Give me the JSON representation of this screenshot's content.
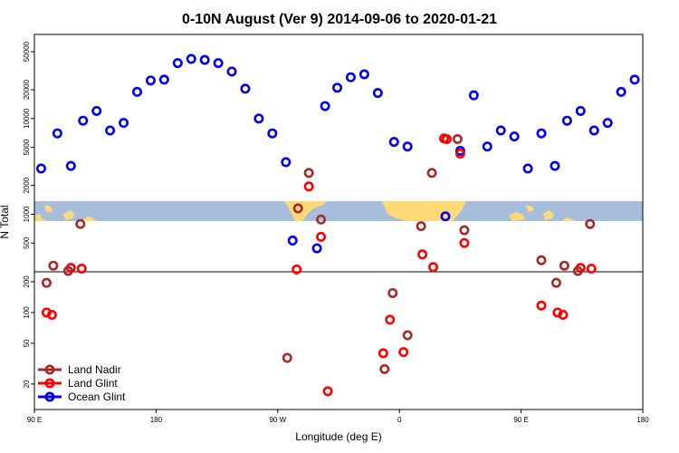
{
  "chart_data": {
    "type": "scatter",
    "title": "0-10N August (Ver 9)   2014-09-06 to 2020-01-21",
    "xlabel": "Longitude (deg E)",
    "ylabel": "N Total",
    "x_ticks": [
      {
        "value": 90,
        "label": "90 E"
      },
      {
        "value": 180,
        "label": "180"
      },
      {
        "value": 270,
        "label": "90 W"
      },
      {
        "value": 360,
        "label": "0"
      },
      {
        "value": 450,
        "label": "90 E"
      },
      {
        "value": 540,
        "label": "180"
      }
    ],
    "xlim": [
      90,
      540
    ],
    "upper_y_ticks": [
      {
        "value": 500,
        "label": "500"
      },
      {
        "value": 1000,
        "label": "1000"
      },
      {
        "value": 2000,
        "label": "2000"
      },
      {
        "value": 5000,
        "label": "5000"
      },
      {
        "value": 10000,
        "label": "10000"
      },
      {
        "value": 20000,
        "label": "20000"
      },
      {
        "value": 50000,
        "label": "50000"
      }
    ],
    "upper_ylim": [
      250,
      65000
    ],
    "lower_y_ticks": [
      {
        "value": 20,
        "label": "20"
      },
      {
        "value": 50,
        "label": "50"
      },
      {
        "value": 100,
        "label": "100"
      },
      {
        "value": 200,
        "label": "200"
      }
    ],
    "lower_ylim": [
      13,
      250
    ],
    "y_scale": "log",
    "grid": false,
    "legend_position": "bottom-left",
    "series": [
      {
        "name": "Ocean Glint",
        "color": "#0000ee",
        "points": [
          {
            "x": 95,
            "y": 3000
          },
          {
            "x": 107,
            "y": 7000
          },
          {
            "x": 117,
            "y": 3200
          },
          {
            "x": 126,
            "y": 9500
          },
          {
            "x": 136,
            "y": 12000
          },
          {
            "x": 146,
            "y": 7500
          },
          {
            "x": 156,
            "y": 9000
          },
          {
            "x": 166,
            "y": 19000
          },
          {
            "x": 176,
            "y": 25000
          },
          {
            "x": 186,
            "y": 25500
          },
          {
            "x": 196,
            "y": 38000
          },
          {
            "x": 206,
            "y": 42000
          },
          {
            "x": 216,
            "y": 41000
          },
          {
            "x": 226,
            "y": 38000
          },
          {
            "x": 236,
            "y": 31000
          },
          {
            "x": 246,
            "y": 20500
          },
          {
            "x": 256,
            "y": 10000
          },
          {
            "x": 266,
            "y": 7000
          },
          {
            "x": 276,
            "y": 3500
          },
          {
            "x": 281,
            "y": 530
          },
          {
            "x": 299,
            "y": 440
          },
          {
            "x": 305,
            "y": 13500
          },
          {
            "x": 314,
            "y": 21000
          },
          {
            "x": 324,
            "y": 27000
          },
          {
            "x": 334,
            "y": 29000
          },
          {
            "x": 344,
            "y": 18500
          },
          {
            "x": 356,
            "y": 5700
          },
          {
            "x": 366,
            "y": 5100
          },
          {
            "x": 394,
            "y": 950
          },
          {
            "x": 405,
            "y": 4600
          },
          {
            "x": 415,
            "y": 17500
          },
          {
            "x": 425,
            "y": 5100
          },
          {
            "x": 435,
            "y": 7500
          },
          {
            "x": 445,
            "y": 6500
          },
          {
            "x": 455,
            "y": 3000
          },
          {
            "x": 465,
            "y": 7000
          },
          {
            "x": 475,
            "y": 3200
          },
          {
            "x": 484,
            "y": 9500
          },
          {
            "x": 494,
            "y": 12000
          },
          {
            "x": 504,
            "y": 7500
          },
          {
            "x": 514,
            "y": 9000
          },
          {
            "x": 524,
            "y": 19000
          },
          {
            "x": 534,
            "y": 25500
          }
        ]
      },
      {
        "name": "Land Glint",
        "color": "#ff0000",
        "points": [
          {
            "x": 99,
            "y": 100
          },
          {
            "x": 103,
            "y": 95
          },
          {
            "x": 117,
            "y": 275
          },
          {
            "x": 125,
            "y": 270
          },
          {
            "x": 284,
            "y": 265
          },
          {
            "x": 293,
            "y": 1950
          },
          {
            "x": 302,
            "y": 580
          },
          {
            "x": 307,
            "y": 17
          },
          {
            "x": 348,
            "y": 40
          },
          {
            "x": 353,
            "y": 85
          },
          {
            "x": 363,
            "y": 41
          },
          {
            "x": 377,
            "y": 380
          },
          {
            "x": 385,
            "y": 280
          },
          {
            "x": 393,
            "y": 6200
          },
          {
            "x": 395,
            "y": 6100
          },
          {
            "x": 405,
            "y": 4300
          },
          {
            "x": 408,
            "y": 500
          },
          {
            "x": 465,
            "y": 117
          },
          {
            "x": 477,
            "y": 100
          },
          {
            "x": 481,
            "y": 95
          },
          {
            "x": 494,
            "y": 275
          },
          {
            "x": 502,
            "y": 270
          }
        ]
      },
      {
        "name": "Land Nadir",
        "color": "#a52a2a",
        "points": [
          {
            "x": 99,
            "y": 195
          },
          {
            "x": 104,
            "y": 290
          },
          {
            "x": 115,
            "y": 255
          },
          {
            "x": 124,
            "y": 790
          },
          {
            "x": 277,
            "y": 36
          },
          {
            "x": 285,
            "y": 1150
          },
          {
            "x": 293,
            "y": 2700
          },
          {
            "x": 302,
            "y": 880
          },
          {
            "x": 349,
            "y": 28
          },
          {
            "x": 355,
            "y": 155
          },
          {
            "x": 366,
            "y": 60
          },
          {
            "x": 376,
            "y": 750
          },
          {
            "x": 384,
            "y": 2700
          },
          {
            "x": 403,
            "y": 6100
          },
          {
            "x": 408,
            "y": 680
          },
          {
            "x": 465,
            "y": 330
          },
          {
            "x": 476,
            "y": 195
          },
          {
            "x": 482,
            "y": 290
          },
          {
            "x": 492,
            "y": 255
          },
          {
            "x": 501,
            "y": 790
          }
        ]
      }
    ],
    "legend": [
      {
        "label": "Land Nadir",
        "color": "#a52a2a"
      },
      {
        "label": "Land Glint",
        "color": "#ff0000"
      },
      {
        "label": "Ocean Glint",
        "color": "#0000ee"
      }
    ]
  }
}
